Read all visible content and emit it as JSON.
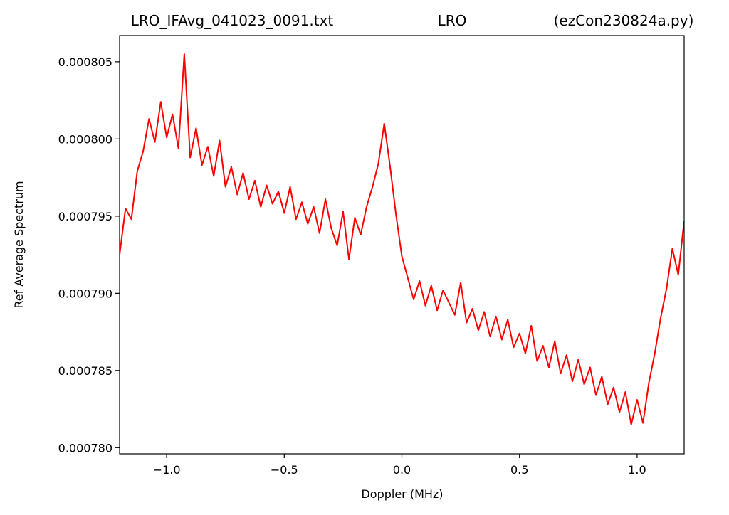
{
  "chart_data": {
    "type": "line",
    "title_parts": [
      "LRO_IFAvg_041023_0091.txt",
      "LRO",
      "(ezCon230824a.py)"
    ],
    "xlabel": "Doppler (MHz)",
    "ylabel": "Ref Average Spectrum",
    "xlim": [
      -1.2,
      1.2
    ],
    "ylim": [
      0.0007796,
      0.0008067
    ],
    "xticks": [
      {
        "value": -1.0,
        "label": "−1.0"
      },
      {
        "value": -0.5,
        "label": "−0.5"
      },
      {
        "value": 0,
        "label": "0.0"
      },
      0.5,
      {
        "value": 1.0,
        "label": "1.0"
      }
    ],
    "yticks": [
      {
        "value": 0.00078,
        "label": "0.000780"
      },
      0.000785,
      {
        "value": 0.00079,
        "label": "0.000790"
      },
      0.000795,
      {
        "value": 0.0008,
        "label": "0.000800"
      },
      0.000805
    ],
    "grid": false,
    "series": [
      {
        "color": "#ff0000",
        "x": [
          -1.2,
          -1.175,
          -1.15,
          -1.125,
          -1.1,
          -1.075,
          -1.05,
          -1.025,
          -1.0,
          -0.975,
          -0.95,
          -0.925,
          -0.9,
          -0.875,
          -0.85,
          -0.825,
          -0.8,
          -0.775,
          -0.75,
          -0.725,
          -0.7,
          -0.675,
          -0.65,
          -0.625,
          -0.6,
          -0.575,
          -0.55,
          -0.525,
          -0.5,
          -0.475,
          -0.45,
          -0.425,
          -0.4,
          -0.375,
          -0.35,
          -0.325,
          -0.3,
          -0.275,
          -0.25,
          -0.225,
          -0.2,
          -0.175,
          -0.15,
          -0.125,
          -0.1,
          -0.075,
          -0.05,
          -0.025,
          0,
          0.025,
          0.05,
          0.075,
          0.1,
          0.125,
          0.15,
          0.175,
          0.2,
          0.225,
          0.25,
          0.275,
          0.3,
          0.325,
          0.35,
          0.375,
          0.4,
          0.425,
          0.45,
          0.475,
          0.5,
          0.525,
          0.55,
          0.575,
          0.6,
          0.625,
          0.65,
          0.675,
          0.7,
          0.725,
          0.75,
          0.775,
          0.8,
          0.825,
          0.85,
          0.875,
          0.9,
          0.925,
          0.95,
          0.975,
          1.0,
          1.025,
          1.05,
          1.075,
          1.1,
          1.125,
          1.15,
          1.175,
          1.2
        ],
        "values": [
          0.0007925,
          0.0007955,
          0.0007948,
          0.0007979,
          0.0007992,
          0.0008013,
          0.0007998,
          0.0008024,
          0.0008001,
          0.0008016,
          0.0007994,
          0.0008055,
          0.0007988,
          0.0008007,
          0.0007983,
          0.0007995,
          0.0007976,
          0.0007999,
          0.0007969,
          0.0007982,
          0.0007964,
          0.0007978,
          0.0007961,
          0.0007973,
          0.0007956,
          0.000797,
          0.0007958,
          0.0007966,
          0.0007952,
          0.0007969,
          0.0007948,
          0.0007959,
          0.0007945,
          0.0007956,
          0.0007939,
          0.0007961,
          0.0007942,
          0.0007931,
          0.0007953,
          0.0007922,
          0.0007949,
          0.0007938,
          0.0007956,
          0.0007969,
          0.0007984,
          0.000801,
          0.0007982,
          0.0007951,
          0.0007924,
          0.000791,
          0.0007896,
          0.0007908,
          0.0007892,
          0.0007905,
          0.0007889,
          0.0007902,
          0.0007894,
          0.0007886,
          0.0007907,
          0.0007881,
          0.000789,
          0.0007876,
          0.0007888,
          0.0007872,
          0.0007885,
          0.000787,
          0.0007883,
          0.0007865,
          0.0007874,
          0.0007861,
          0.0007879,
          0.0007856,
          0.0007866,
          0.0007852,
          0.0007869,
          0.0007848,
          0.000786,
          0.0007843,
          0.0007857,
          0.0007841,
          0.0007852,
          0.0007834,
          0.0007846,
          0.0007828,
          0.0007839,
          0.0007823,
          0.0007836,
          0.0007815,
          0.0007831,
          0.0007816,
          0.0007842,
          0.0007861,
          0.0007884,
          0.0007903,
          0.0007929,
          0.0007912,
          0.0007947
        ]
      }
    ]
  }
}
